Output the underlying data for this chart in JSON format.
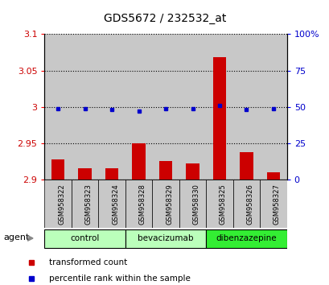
{
  "title": "GDS5672 / 232532_at",
  "samples": [
    "GSM958322",
    "GSM958323",
    "GSM958324",
    "GSM958328",
    "GSM958329",
    "GSM958330",
    "GSM958325",
    "GSM958326",
    "GSM958327"
  ],
  "transformed_counts": [
    2.928,
    2.915,
    2.916,
    2.95,
    2.926,
    2.922,
    3.068,
    2.938,
    2.91
  ],
  "percentile_ranks": [
    49,
    49,
    48,
    47,
    49,
    49,
    51,
    48,
    49
  ],
  "group_spans": [
    {
      "label": "control",
      "start": 0,
      "end": 2,
      "color": "#bbffbb"
    },
    {
      "label": "bevacizumab",
      "start": 3,
      "end": 5,
      "color": "#bbffbb"
    },
    {
      "label": "dibenzazepine",
      "start": 6,
      "end": 8,
      "color": "#33ee33"
    }
  ],
  "ylim_left": [
    2.9,
    3.1
  ],
  "ylim_right": [
    0,
    100
  ],
  "yticks_left": [
    2.9,
    2.95,
    3.0,
    3.05,
    3.1
  ],
  "yticks_right": [
    0,
    25,
    50,
    75,
    100
  ],
  "ytick_labels_left": [
    "2.9",
    "2.95",
    "3",
    "3.05",
    "3.1"
  ],
  "ytick_labels_right": [
    "0",
    "25",
    "50",
    "75",
    "100%"
  ],
  "bar_color": "#cc0000",
  "dot_color": "#0000cc",
  "col_bg_color": "#c8c8c8",
  "bar_width": 0.5,
  "agent_label": "agent",
  "legend_bar": "transformed count",
  "legend_dot": "percentile rank within the sample",
  "background_color": "#ffffff",
  "tick_label_color_left": "#cc0000",
  "tick_label_color_right": "#0000cc"
}
